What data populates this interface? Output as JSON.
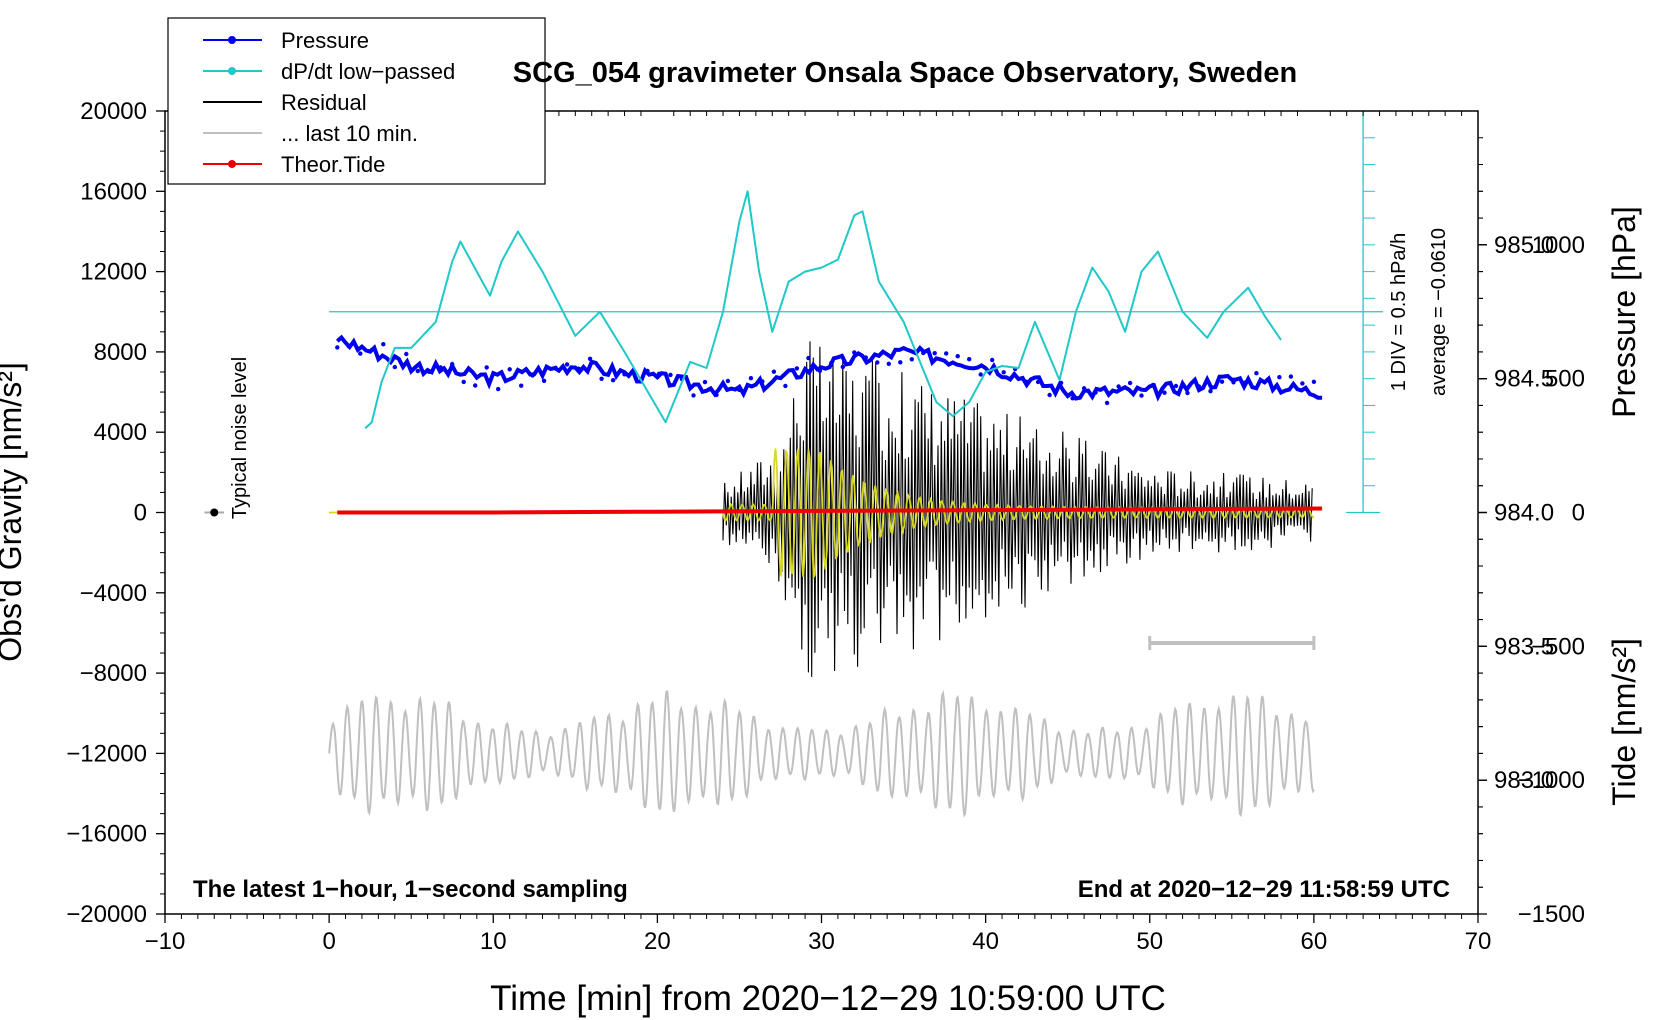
{
  "chart_data": {
    "type": "line",
    "title": "SCG_054 gravimeter Onsala Space Observatory, Sweden",
    "xlabel": "Time [min] from 2020−12−29 10:59:00 UTC",
    "ylabel_left": "Obs'd Gravity [nm/s²]",
    "ylabel_pressure": "Pressure [hPa]",
    "ylabel_tide": "Tide [nm/s²]",
    "xlim": [
      -10,
      70
    ],
    "ylim": [
      -20000,
      20000
    ],
    "x_ticks": [
      "−10",
      "0",
      "10",
      "20",
      "30",
      "40",
      "50",
      "60",
      "70"
    ],
    "y_ticks": [
      "20000",
      "16000",
      "12000",
      "8000",
      "4000",
      "0",
      "−4000",
      "−8000",
      "−12000",
      "−16000",
      "−20000"
    ],
    "pressure_ticks": [
      "985.0",
      "984.5",
      "984.0",
      "983.5",
      "983.0"
    ],
    "pressure_range": [
      982.5,
      985.5
    ],
    "tide_ticks": [
      "1000",
      "500",
      "0",
      "−500",
      "−1000",
      "−1500"
    ],
    "tide_range": [
      -1500,
      1500
    ],
    "legend": [
      {
        "label": "Pressure",
        "color": "#0000ee",
        "marker": "dot"
      },
      {
        "label": "dP/dt low−passed",
        "color": "#20c8c8",
        "marker": "dot"
      },
      {
        "label": "Residual",
        "color": "#000000",
        "marker": "none"
      },
      {
        "label": "... last 10 min.",
        "color": "#c0c0c0",
        "marker": "none"
      },
      {
        "label": "Theor.Tide",
        "color": "#ee0000",
        "marker": "dot"
      }
    ],
    "dpdt_scale_label": "1 DIV = 0.5 hPa/h",
    "dpdt_average_label": "average = −0.0610",
    "noise_label": "Typical noise level",
    "footer_left": "The latest 1−hour, 1−second sampling",
    "footer_right": "End at 2020−12−29 11:58:59 UTC",
    "series": [
      {
        "name": "Pressure",
        "unit": "hPa",
        "color": "#0000ee",
        "x": [
          0.5,
          5,
          10,
          15,
          20,
          25,
          30,
          35,
          40,
          45,
          50,
          55,
          60
        ],
        "values": [
          984.65,
          984.55,
          984.5,
          984.55,
          984.5,
          984.45,
          984.55,
          984.6,
          984.55,
          984.45,
          984.45,
          984.5,
          984.45
        ]
      },
      {
        "name": "dP/dt low-passed",
        "unit": "nm/s² axis",
        "color": "#20c8c8",
        "x": [
          2.2,
          2.6,
          3.2,
          4.0,
          5.0,
          6.5,
          7.5,
          8.0,
          9.0,
          9.8,
          10.5,
          11.5,
          13.0,
          15.0,
          16.5,
          18.0,
          20.5,
          22.0,
          23.0,
          24.0,
          25.0,
          25.5,
          26.2,
          27.0,
          28.0,
          29.0,
          30.0,
          31.0,
          32.0,
          32.5,
          33.5,
          35.0,
          37.0,
          38.0,
          39.0,
          40.0,
          41.0,
          42.0,
          43.0,
          44.5,
          45.5,
          46.5,
          47.5,
          48.5,
          49.5,
          50.5,
          52.0,
          53.5,
          54.5,
          56.0,
          57.0,
          58.0
        ],
        "values": [
          4200,
          4500,
          6500,
          8200,
          8200,
          9500,
          12500,
          13500,
          12000,
          10800,
          12500,
          14000,
          12000,
          8800,
          10000,
          8000,
          4500,
          7500,
          7200,
          10000,
          14500,
          16000,
          12000,
          9000,
          11500,
          12000,
          12200,
          12600,
          14800,
          15000,
          11500,
          9500,
          5500,
          4800,
          5500,
          7000,
          7300,
          7200,
          9500,
          6600,
          10000,
          12200,
          11000,
          9000,
          12000,
          13000,
          10000,
          8700,
          10000,
          11200,
          9800,
          8600
        ]
      },
      {
        "name": "Residual",
        "unit": "nm/s²",
        "color": "#000000",
        "x": [
          0,
          24,
          27.5,
          29,
          30,
          35,
          40,
          45,
          50,
          55,
          60
        ],
        "values": [
          0,
          1500,
          3500,
          -9300,
          8300,
          7200,
          5500,
          4000,
          2300,
          2000,
          1600
        ]
      },
      {
        "name": "... last 10 min.",
        "unit": "nm/s²",
        "color": "#c0c0c0",
        "x": [
          50,
          60
        ],
        "values": [
          -6500,
          -6500
        ]
      },
      {
        "name": "Theor.Tide",
        "unit": "nm/s² (tide axis)",
        "color": "#ee0000",
        "x": [
          0.5,
          10,
          20,
          30,
          40,
          50,
          60.5
        ],
        "values": [
          0,
          0,
          3,
          6,
          9,
          12,
          15
        ]
      }
    ]
  }
}
